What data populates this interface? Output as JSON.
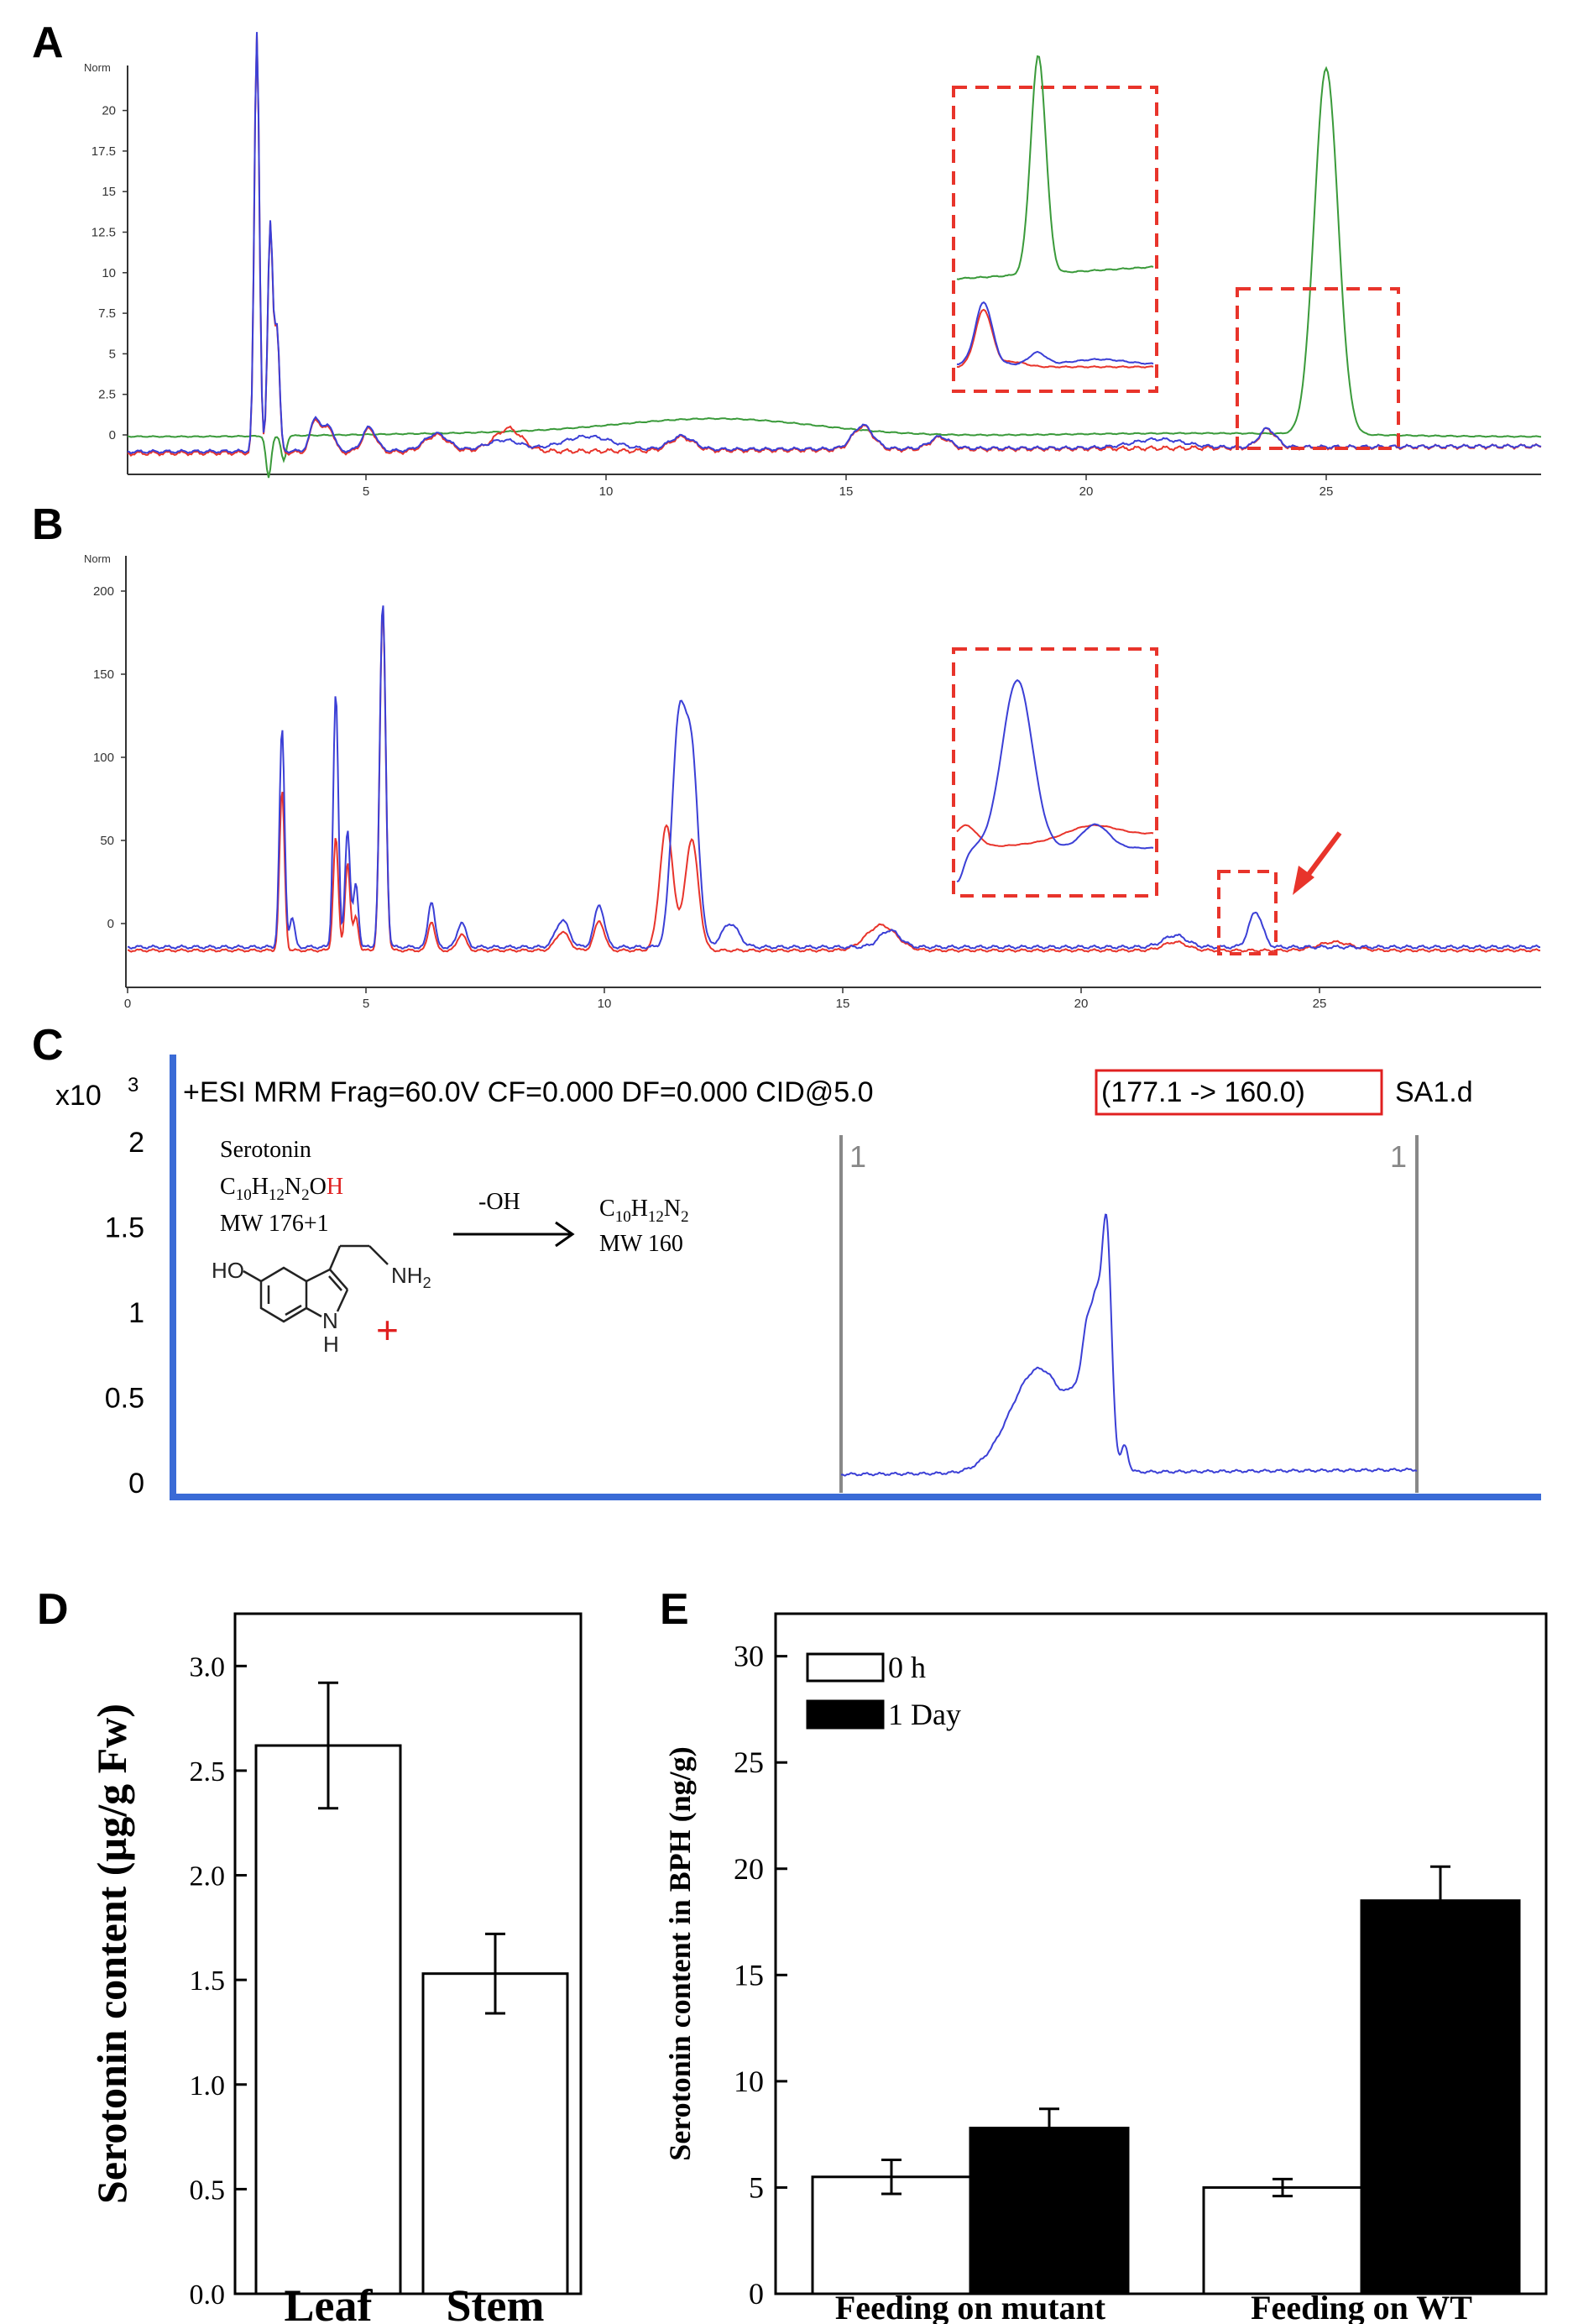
{
  "panels": {
    "A": {
      "letter": "A",
      "ylabel": "Norm",
      "yticks": [
        "0",
        "2.5",
        "5",
        "7.5",
        "10",
        "12.5",
        "15",
        "17.5",
        "20"
      ],
      "xticks": [
        "5",
        "10",
        "15",
        "20",
        "25"
      ],
      "colors": {
        "green": "#3a9a3a",
        "red": "#e8342b",
        "blue": "#3b3fd6"
      }
    },
    "B": {
      "letter": "B",
      "ylabel": "Norm",
      "yticks": [
        "0",
        "50",
        "100",
        "150",
        "200"
      ],
      "xticks": [
        "0",
        "5",
        "10",
        "15",
        "20",
        "25"
      ]
    },
    "C": {
      "letter": "C",
      "scale": "x10",
      "scale_exp": "3",
      "header": "+ESI MRM Frag=60.0V CF=0.000 DF=0.000 CID@5.0",
      "transition": "(177.1 -> 160.0)",
      "file": "SA1.d",
      "yticks": [
        "0",
        "0.5",
        "1",
        "1.5",
        "2"
      ],
      "marker_left": "1",
      "marker_right": "1",
      "compound": "Serotonin",
      "formula_parts": [
        "C",
        "10",
        "H",
        "12",
        "N",
        "2",
        "O",
        "H"
      ],
      "mw_left": "MW 176+1",
      "loss": "-OH",
      "product_parts": [
        "C",
        "10",
        "H",
        "12",
        "N",
        "2"
      ],
      "mw_right": "MW 160",
      "ho": "HO",
      "nh2": "NH",
      "nh2_sub": "2",
      "nh": "N",
      "h": "H",
      "plus": "+"
    }
  },
  "chart_data": [
    {
      "panel": "D",
      "type": "bar",
      "categories": [
        "Leaf",
        "Stem"
      ],
      "values": [
        2.62,
        1.53
      ],
      "errors": [
        0.3,
        0.19
      ],
      "ylabel": "Serotonin content (µg/g Fw)",
      "ylim": [
        0,
        3.25
      ],
      "yticks": [
        "0.0",
        "0.5",
        "1.0",
        "1.5",
        "2.0",
        "2.5",
        "3.0"
      ]
    },
    {
      "panel": "E",
      "type": "bar",
      "categories": [
        "Feeding on mutant",
        "Feeding on WT"
      ],
      "series": [
        {
          "name": "0 h",
          "values": [
            5.5,
            5.0
          ],
          "errors": [
            0.8,
            0.4
          ],
          "color": "#ffffff"
        },
        {
          "name": "1 Day",
          "values": [
            7.8,
            18.5
          ],
          "errors": [
            0.9,
            1.6
          ],
          "color": "#000000"
        }
      ],
      "ylabel": "Serotonin content in BPH (ng/g)",
      "ylim": [
        0,
        32
      ],
      "yticks": [
        "0",
        "5",
        "10",
        "15",
        "20",
        "25",
        "30"
      ],
      "legend": "top-left"
    }
  ]
}
